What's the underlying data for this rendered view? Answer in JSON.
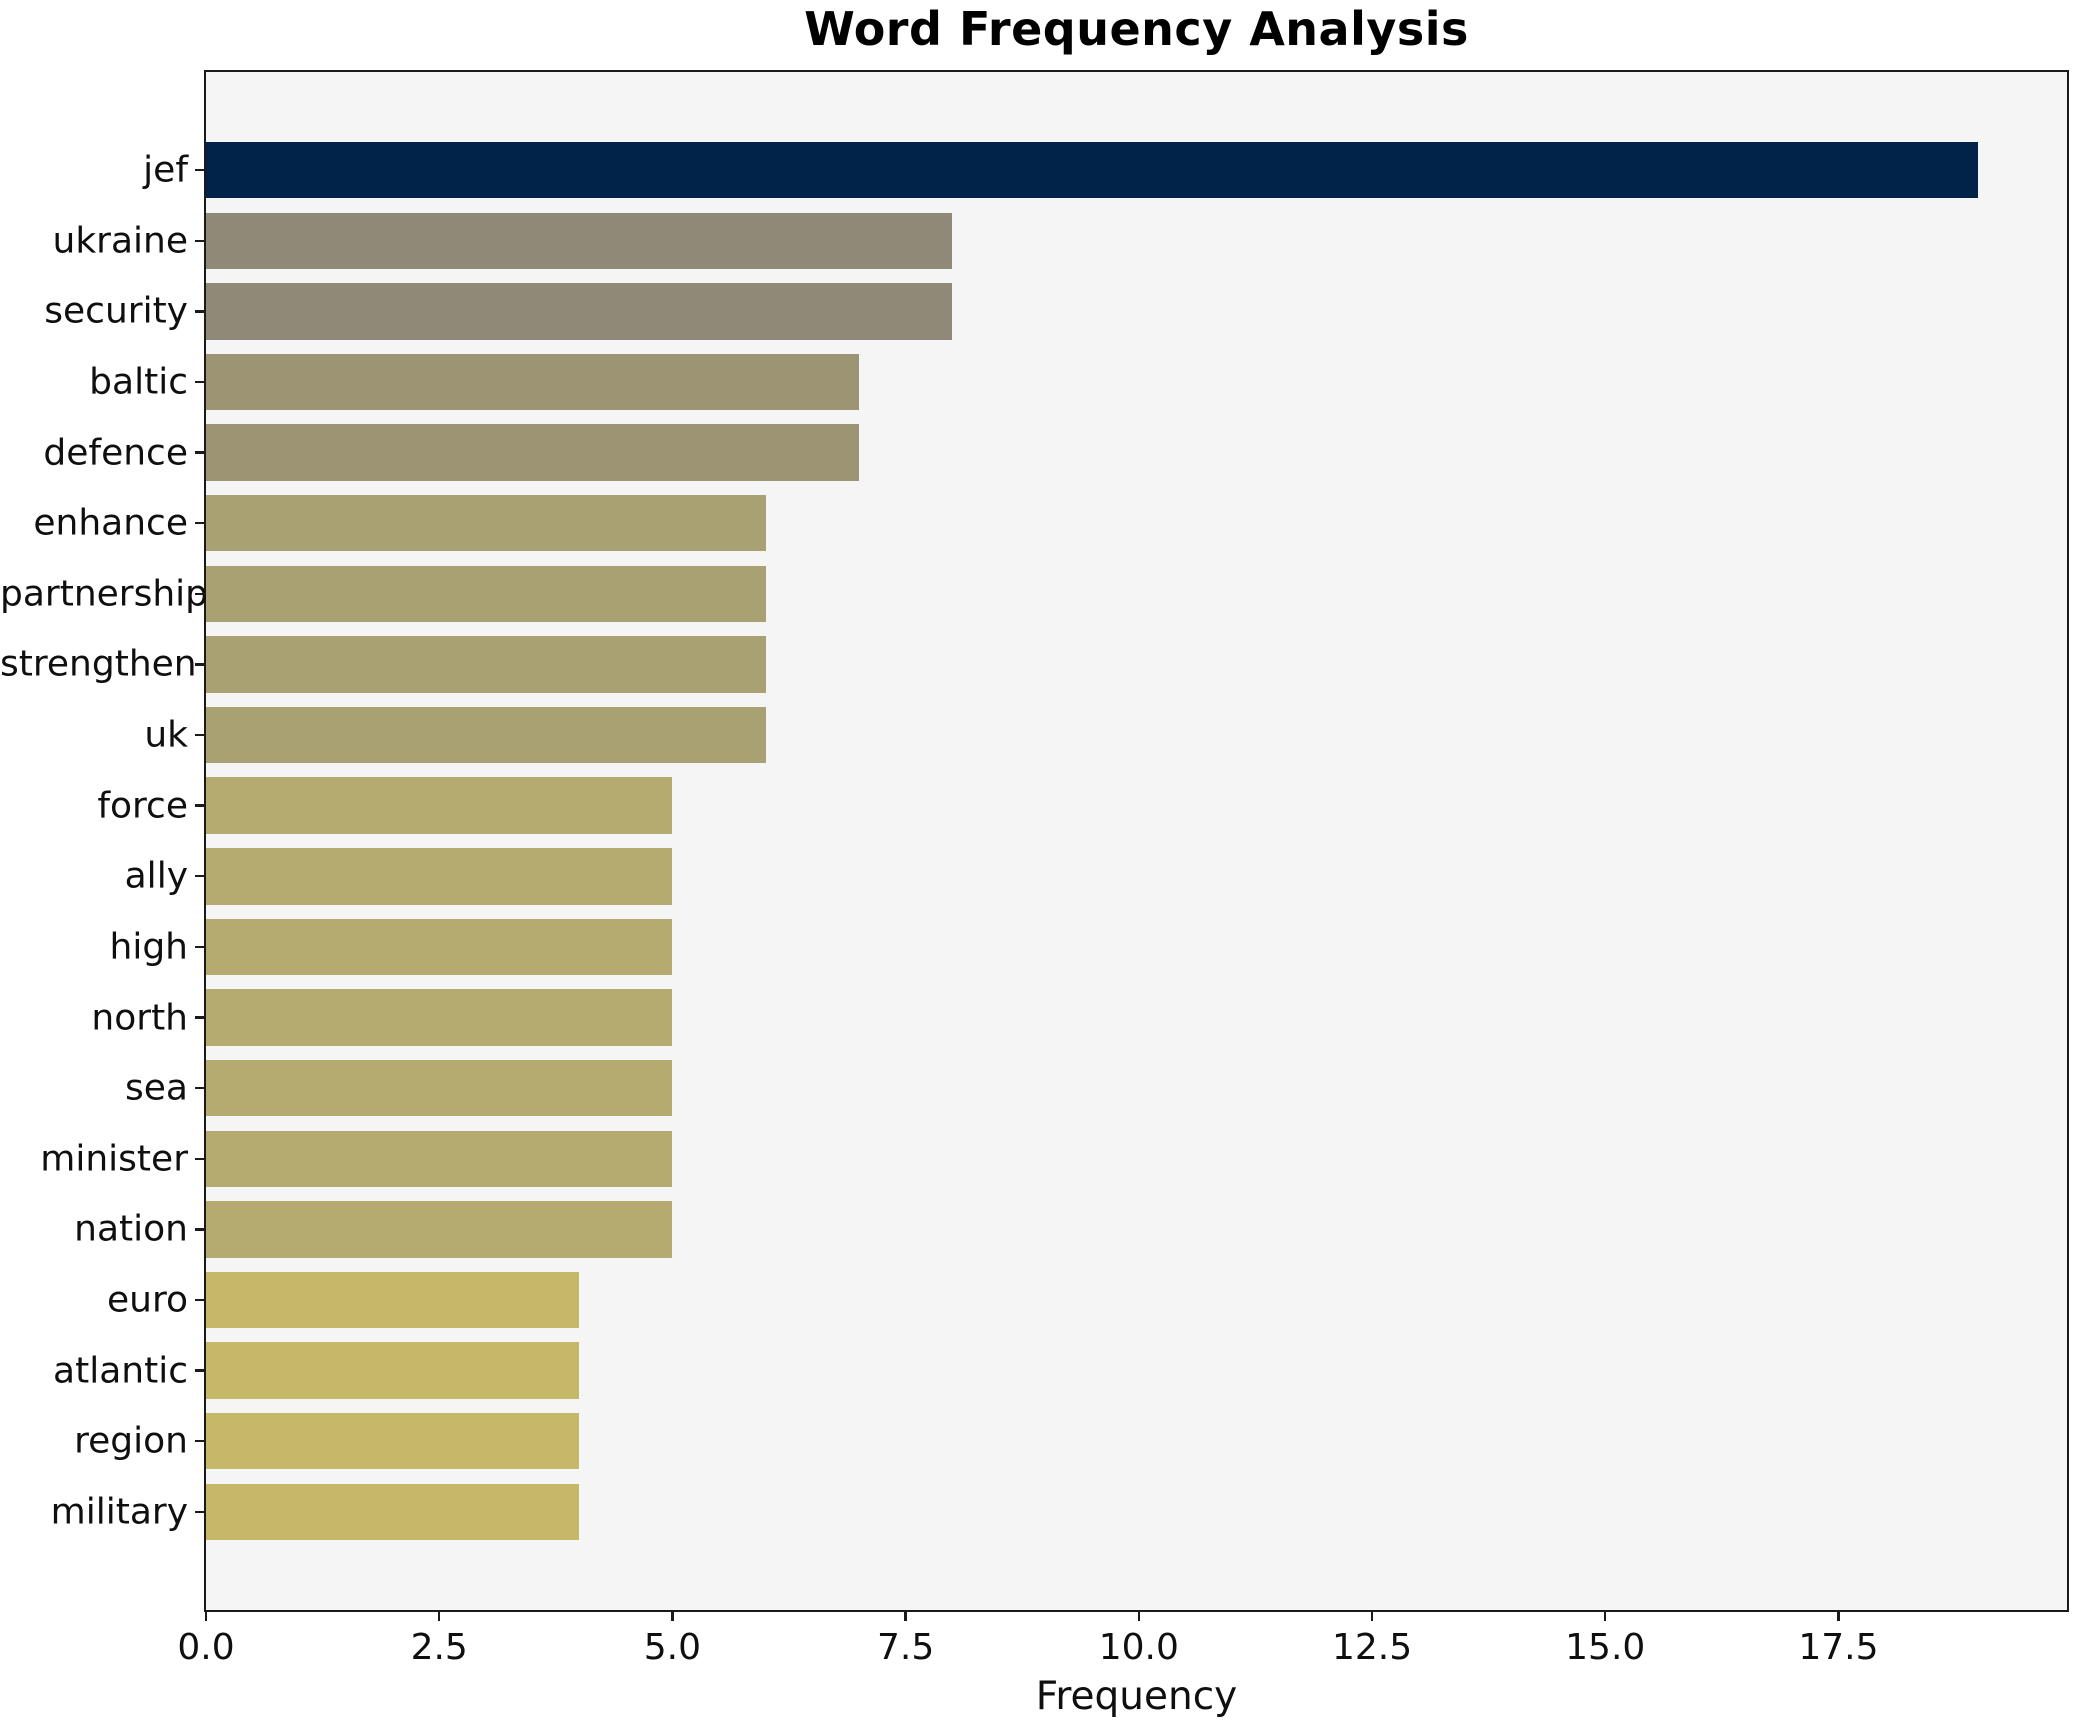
{
  "chart_data": {
    "type": "bar",
    "orientation": "horizontal",
    "title": "Word Frequency Analysis",
    "xlabel": "Frequency",
    "ylabel": "",
    "categories": [
      "jef",
      "ukraine",
      "security",
      "baltic",
      "defence",
      "enhance",
      "partnership",
      "strengthen",
      "uk",
      "force",
      "ally",
      "high",
      "north",
      "sea",
      "minister",
      "nation",
      "euro",
      "atlantic",
      "region",
      "military"
    ],
    "values": [
      19,
      8,
      8,
      7,
      7,
      6,
      6,
      6,
      6,
      5,
      5,
      5,
      5,
      5,
      5,
      5,
      4,
      4,
      4,
      4
    ],
    "bar_colors": [
      "#022349",
      "#8f8a78",
      "#8f8a78",
      "#9d9473",
      "#9d9473",
      "#aaa173",
      "#aaa173",
      "#aaa173",
      "#aaa173",
      "#b5aa70",
      "#b5aa70",
      "#b5aa70",
      "#b5aa70",
      "#b5aa70",
      "#b5aa70",
      "#b5aa70",
      "#c6b869",
      "#c6b869",
      "#c6b869",
      "#c6b869"
    ],
    "xticks": [
      "0.0",
      "2.5",
      "5.0",
      "7.5",
      "10.0",
      "12.5",
      "15.0",
      "17.5"
    ],
    "xtick_values": [
      0,
      2.5,
      5,
      7.5,
      10,
      12.5,
      15,
      17.5
    ],
    "xlim": [
      0,
      19.95
    ],
    "grid": false,
    "legend": null,
    "plot_background": "#f5f5f6",
    "figure_background": "#ffffff",
    "axis_color": "#1a1a1a"
  }
}
